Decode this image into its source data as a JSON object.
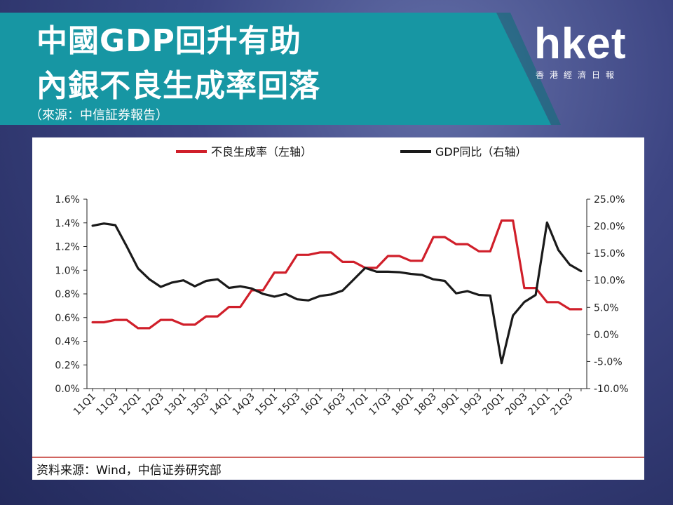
{
  "header": {
    "title_line1": "中國GDP回升有助",
    "title_line2": "內銀不良生成率回落",
    "source_note": "（來源：中信証券報告）"
  },
  "logo": {
    "wordmark": "hket",
    "subtitle": "香港經濟日報"
  },
  "footer": {
    "source": "资料来源：Wind，中信证券研究部"
  },
  "colors": {
    "banner_teal": "#1796a3",
    "npl_line": "#d01f2a",
    "gdp_line": "#1a1a1a"
  },
  "chart_data": {
    "type": "line",
    "legend_position": "top",
    "grid": false,
    "x": [
      "11Q1",
      "11Q2",
      "11Q3",
      "11Q4",
      "12Q1",
      "12Q2",
      "12Q3",
      "12Q4",
      "13Q1",
      "13Q2",
      "13Q3",
      "13Q4",
      "14Q1",
      "14Q2",
      "14Q3",
      "14Q4",
      "15Q1",
      "15Q2",
      "15Q3",
      "15Q4",
      "16Q1",
      "16Q2",
      "16Q3",
      "16Q4",
      "17Q1",
      "17Q2",
      "17Q3",
      "17Q4",
      "18Q1",
      "18Q2",
      "18Q3",
      "18Q4",
      "19Q1",
      "19Q2",
      "19Q3",
      "19Q4",
      "20Q1",
      "20Q2",
      "20Q3",
      "20Q4",
      "21Q1",
      "21Q2",
      "21Q3",
      "21Q4"
    ],
    "x_tick_labels": [
      "11Q1",
      "11Q3",
      "12Q1",
      "12Q3",
      "13Q1",
      "13Q3",
      "14Q1",
      "14Q3",
      "15Q1",
      "15Q3",
      "16Q1",
      "16Q3",
      "17Q1",
      "17Q3",
      "18Q1",
      "18Q3",
      "19Q1",
      "19Q3",
      "20Q1",
      "20Q3",
      "21Q1",
      "21Q3"
    ],
    "y_left": {
      "range": [
        0,
        1.6
      ],
      "ticks": [
        "0.0%",
        "0.2%",
        "0.4%",
        "0.6%",
        "0.8%",
        "1.0%",
        "1.2%",
        "1.4%",
        "1.6%"
      ]
    },
    "y_right": {
      "range": [
        -10,
        25
      ],
      "ticks": [
        "-10.0%",
        "-5.0%",
        "0.0%",
        "5.0%",
        "10.0%",
        "15.0%",
        "20.0%",
        "25.0%"
      ]
    },
    "series": [
      {
        "name": "不良生成率（左轴）",
        "axis": "left",
        "values": [
          0.56,
          0.56,
          0.58,
          0.58,
          0.51,
          0.51,
          0.58,
          0.58,
          0.54,
          0.54,
          0.61,
          0.61,
          0.69,
          0.69,
          0.83,
          0.83,
          0.98,
          0.98,
          1.13,
          1.13,
          1.15,
          1.15,
          1.07,
          1.07,
          1.02,
          1.02,
          1.12,
          1.12,
          1.08,
          1.08,
          1.28,
          1.28,
          1.22,
          1.22,
          1.16,
          1.16,
          1.42,
          1.42,
          0.85,
          0.85,
          0.73,
          0.73,
          0.67,
          0.67
        ]
      },
      {
        "name": "GDP同比（右轴）",
        "axis": "right",
        "values": [
          20.1,
          20.5,
          20.2,
          16.3,
          12.2,
          10.2,
          8.8,
          9.6,
          10.0,
          8.9,
          9.9,
          10.2,
          8.6,
          8.9,
          8.5,
          7.5,
          7.0,
          7.5,
          6.5,
          6.3,
          7.1,
          7.4,
          8.1,
          10.2,
          12.3,
          11.6,
          11.6,
          11.5,
          11.2,
          11.0,
          10.2,
          9.9,
          7.6,
          8.0,
          7.3,
          7.2,
          -5.3,
          3.5,
          6.0,
          7.3,
          20.7,
          15.6,
          12.9,
          11.7
        ]
      }
    ]
  }
}
